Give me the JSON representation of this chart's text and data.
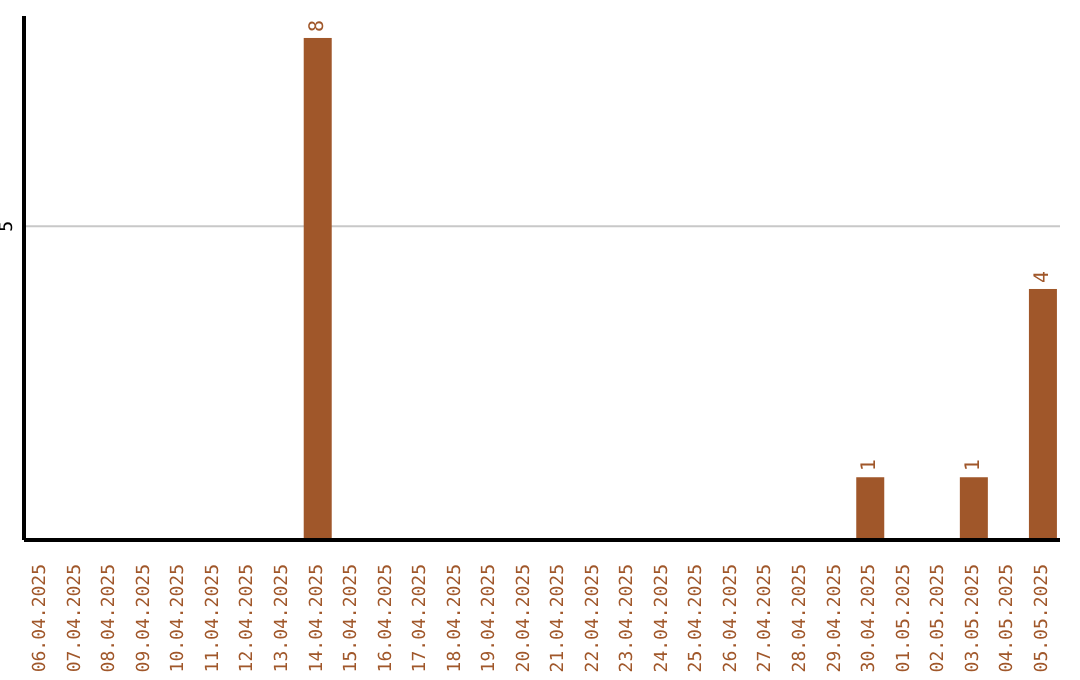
{
  "chart_data": {
    "type": "bar",
    "categories": [
      "06.04.2025",
      "07.04.2025",
      "08.04.2025",
      "09.04.2025",
      "10.04.2025",
      "11.04.2025",
      "12.04.2025",
      "13.04.2025",
      "14.04.2025",
      "15.04.2025",
      "16.04.2025",
      "17.04.2025",
      "18.04.2025",
      "19.04.2025",
      "20.04.2025",
      "21.04.2025",
      "22.04.2025",
      "23.04.2025",
      "24.04.2025",
      "25.04.2025",
      "26.04.2025",
      "27.04.2025",
      "28.04.2025",
      "29.04.2025",
      "30.04.2025",
      "01.05.2025",
      "02.05.2025",
      "03.05.2025",
      "04.05.2025",
      "05.05.2025"
    ],
    "values": [
      0,
      0,
      0,
      0,
      0,
      0,
      0,
      0,
      8,
      0,
      0,
      0,
      0,
      0,
      0,
      0,
      0,
      0,
      0,
      0,
      0,
      0,
      0,
      0,
      1,
      0,
      0,
      1,
      0,
      4
    ],
    "value_labels": [
      null,
      null,
      null,
      null,
      null,
      null,
      null,
      null,
      "8",
      null,
      null,
      null,
      null,
      null,
      null,
      null,
      null,
      null,
      null,
      null,
      null,
      null,
      null,
      null,
      "1",
      null,
      null,
      "1",
      null,
      "4"
    ],
    "color": "#a0572a",
    "ylim": [
      0,
      8.35
    ],
    "yticks": [
      5
    ],
    "grid": "y"
  }
}
